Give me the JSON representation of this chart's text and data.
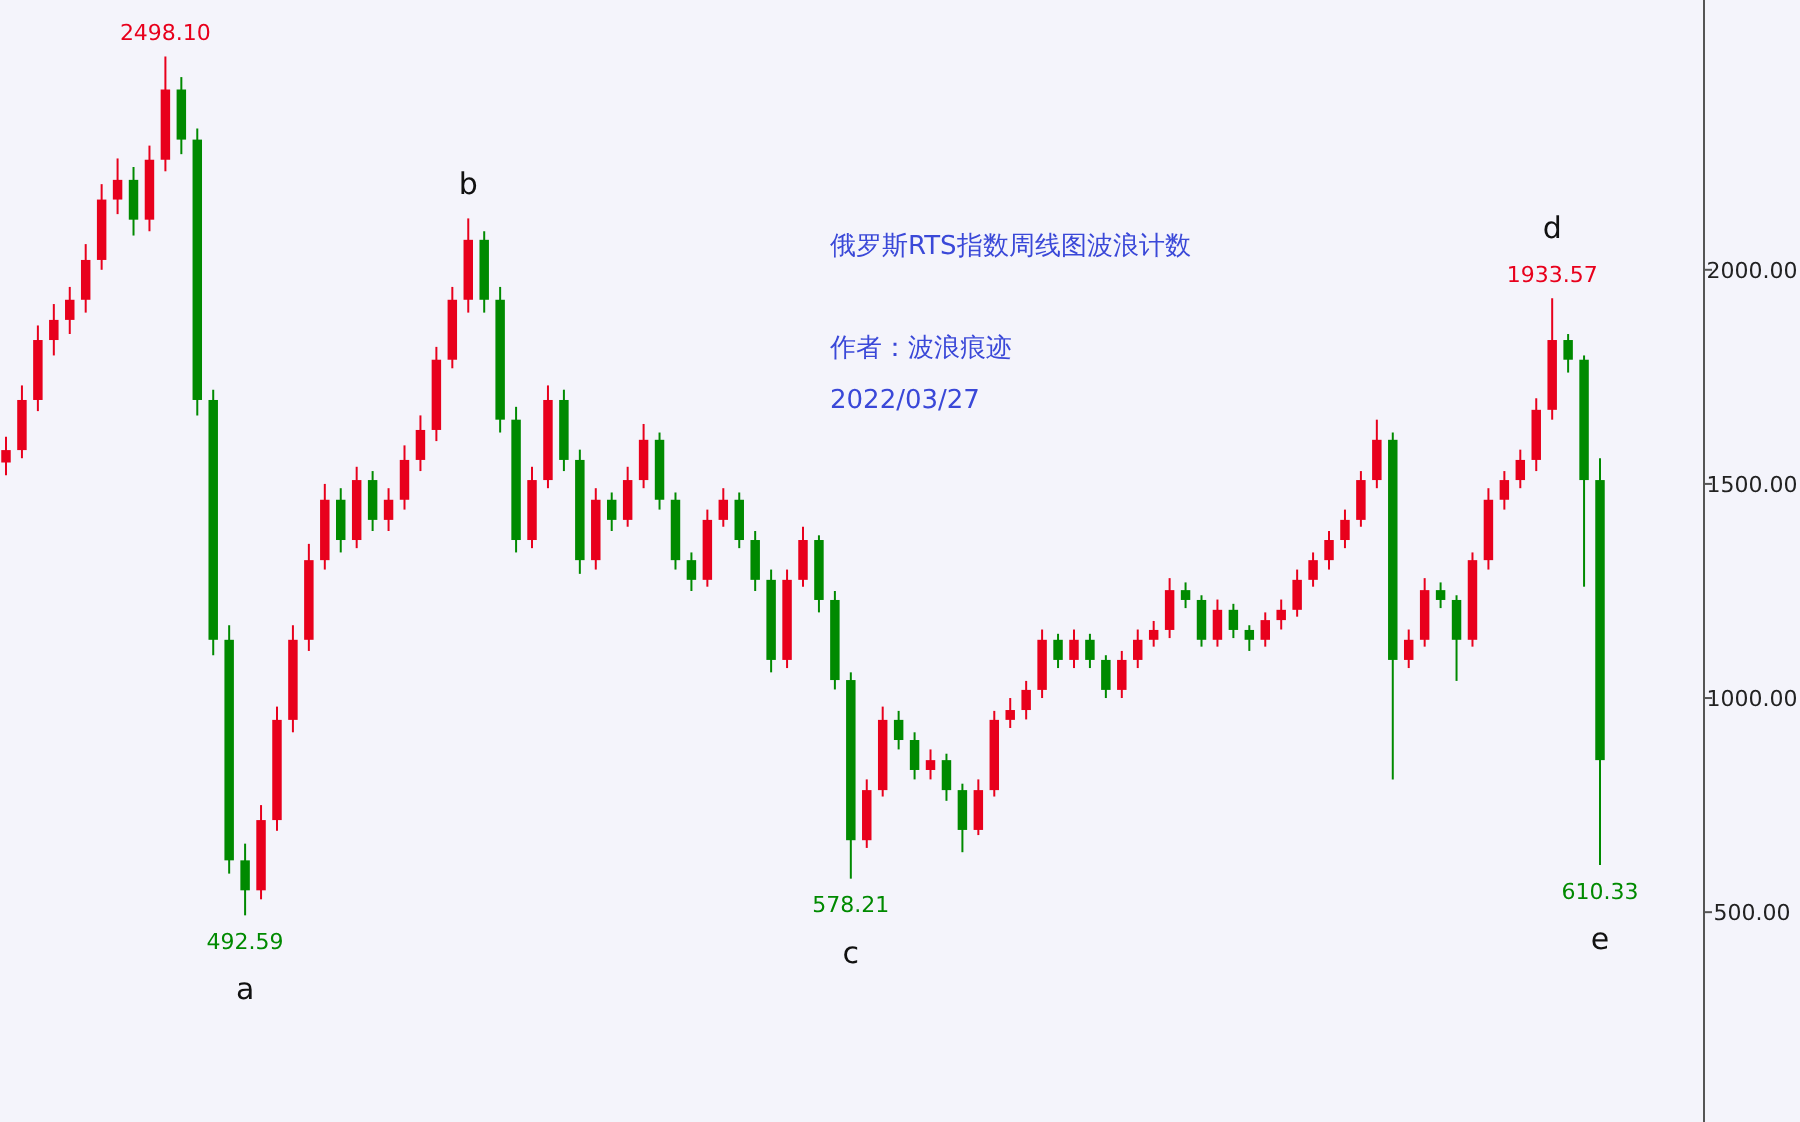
{
  "chart_data": {
    "type": "candlestick",
    "title": "俄罗斯RTS指数周线图波浪计数",
    "subtitle": "作者：波浪痕迹",
    "annotations": [
      "2022/03/27",
      {
        "text": "2498.10",
        "y": 2498.1
      },
      {
        "text": "492.59",
        "y": 492.59
      },
      {
        "text": "a",
        "y": 492.59
      },
      {
        "text": "b",
        "y": 2120
      },
      {
        "text": "578.21",
        "y": 578.21
      },
      {
        "text": "c",
        "y": 578.21
      },
      {
        "text": "1933.57",
        "y": 1933.57
      },
      {
        "text": "d",
        "y": 1933.57
      },
      {
        "text": "610.33",
        "y": 610.33
      },
      {
        "text": "e",
        "y": 610.33
      }
    ],
    "categories": [
      null,
      null,
      null,
      null,
      null,
      null,
      null,
      null,
      null,
      null,
      null,
      null,
      null,
      null,
      null,
      null,
      null,
      null,
      null,
      null,
      null,
      null,
      null,
      null,
      null,
      null,
      null,
      null,
      null,
      null,
      null,
      null,
      null,
      null,
      null,
      null,
      null,
      null,
      null,
      null,
      null,
      null,
      null,
      null,
      null,
      null,
      null,
      null,
      null,
      null,
      null,
      null,
      null,
      null,
      null,
      null,
      null,
      null,
      null,
      null,
      null,
      null,
      null,
      null,
      null,
      null,
      null,
      null,
      null,
      null,
      null,
      null,
      null,
      null,
      null,
      null,
      null,
      null,
      null,
      null,
      null,
      null,
      null,
      null,
      null,
      null,
      null,
      null,
      null,
      null,
      null,
      null,
      null,
      null,
      null,
      null,
      null,
      null,
      null,
      null,
      null
    ],
    "ohlc": [
      [
        1550,
        1610,
        1520,
        1579
      ],
      [
        1579,
        1730,
        1560,
        1696
      ],
      [
        1696,
        1870,
        1670,
        1836
      ],
      [
        1836,
        1920,
        1800,
        1883
      ],
      [
        1883,
        1960,
        1850,
        1930
      ],
      [
        1930,
        2060,
        1900,
        2023
      ],
      [
        2023,
        2200,
        2000,
        2164
      ],
      [
        2164,
        2260,
        2130,
        2210
      ],
      [
        2210,
        2240,
        2080,
        2117
      ],
      [
        2117,
        2290,
        2090,
        2257
      ],
      [
        2257,
        2498.1,
        2230,
        2421
      ],
      [
        2421,
        2450,
        2270,
        2304
      ],
      [
        2304,
        2330,
        1660,
        1696
      ],
      [
        1696,
        1720,
        1100,
        1136
      ],
      [
        1136,
        1170,
        590,
        621
      ],
      [
        621,
        660,
        492.59,
        551
      ],
      [
        551,
        750,
        530,
        715
      ],
      [
        715,
        980,
        690,
        949
      ],
      [
        949,
        1170,
        920,
        1136
      ],
      [
        1136,
        1360,
        1110,
        1322
      ],
      [
        1322,
        1500,
        1300,
        1463
      ],
      [
        1463,
        1490,
        1340,
        1369
      ],
      [
        1369,
        1540,
        1350,
        1509
      ],
      [
        1509,
        1530,
        1390,
        1416
      ],
      [
        1416,
        1490,
        1390,
        1463
      ],
      [
        1463,
        1590,
        1440,
        1556
      ],
      [
        1556,
        1660,
        1530,
        1626
      ],
      [
        1626,
        1820,
        1600,
        1790
      ],
      [
        1790,
        1960,
        1770,
        1930
      ],
      [
        1930,
        2120,
        1900,
        2070
      ],
      [
        2070,
        2090,
        1900,
        1930
      ],
      [
        1930,
        1960,
        1620,
        1650
      ],
      [
        1650,
        1680,
        1340,
        1369
      ],
      [
        1369,
        1540,
        1350,
        1509
      ],
      [
        1509,
        1730,
        1490,
        1696
      ],
      [
        1696,
        1720,
        1530,
        1556
      ],
      [
        1556,
        1580,
        1290,
        1322
      ],
      [
        1322,
        1490,
        1300,
        1463
      ],
      [
        1463,
        1480,
        1390,
        1416
      ],
      [
        1416,
        1540,
        1400,
        1509
      ],
      [
        1509,
        1640,
        1490,
        1603
      ],
      [
        1603,
        1620,
        1440,
        1463
      ],
      [
        1463,
        1480,
        1300,
        1322
      ],
      [
        1322,
        1340,
        1250,
        1276
      ],
      [
        1276,
        1440,
        1260,
        1416
      ],
      [
        1416,
        1490,
        1400,
        1463
      ],
      [
        1463,
        1480,
        1350,
        1369
      ],
      [
        1369,
        1390,
        1250,
        1276
      ],
      [
        1276,
        1300,
        1060,
        1089
      ],
      [
        1089,
        1300,
        1070,
        1276
      ],
      [
        1276,
        1400,
        1260,
        1369
      ],
      [
        1369,
        1380,
        1200,
        1229
      ],
      [
        1229,
        1250,
        1020,
        1042
      ],
      [
        1042,
        1060,
        578.21,
        668
      ],
      [
        668,
        810,
        650,
        785
      ],
      [
        785,
        980,
        770,
        949
      ],
      [
        949,
        970,
        880,
        902
      ],
      [
        902,
        920,
        810,
        832
      ],
      [
        832,
        880,
        810,
        855
      ],
      [
        855,
        870,
        760,
        785
      ],
      [
        785,
        800,
        640,
        692
      ],
      [
        692,
        810,
        680,
        785
      ],
      [
        785,
        970,
        770,
        949
      ],
      [
        949,
        1000,
        930,
        972
      ],
      [
        972,
        1040,
        950,
        1019
      ],
      [
        1019,
        1160,
        1000,
        1136
      ],
      [
        1136,
        1150,
        1070,
        1089
      ],
      [
        1089,
        1160,
        1070,
        1136
      ],
      [
        1136,
        1150,
        1070,
        1089
      ],
      [
        1089,
        1100,
        1000,
        1019
      ],
      [
        1019,
        1110,
        1000,
        1089
      ],
      [
        1089,
        1160,
        1070,
        1136
      ],
      [
        1136,
        1180,
        1120,
        1159
      ],
      [
        1159,
        1280,
        1140,
        1252
      ],
      [
        1252,
        1270,
        1210,
        1229
      ],
      [
        1229,
        1240,
        1120,
        1136
      ],
      [
        1136,
        1230,
        1120,
        1206
      ],
      [
        1206,
        1220,
        1140,
        1159
      ],
      [
        1159,
        1170,
        1110,
        1136
      ],
      [
        1136,
        1200,
        1120,
        1182
      ],
      [
        1182,
        1230,
        1160,
        1206
      ],
      [
        1206,
        1300,
        1190,
        1276
      ],
      [
        1276,
        1340,
        1260,
        1322
      ],
      [
        1322,
        1390,
        1300,
        1369
      ],
      [
        1369,
        1440,
        1350,
        1416
      ],
      [
        1416,
        1530,
        1400,
        1509
      ],
      [
        1509,
        1650,
        1490,
        1603
      ],
      [
        1603,
        1620,
        810,
        1089
      ],
      [
        1089,
        1160,
        1070,
        1136
      ],
      [
        1136,
        1280,
        1120,
        1252
      ],
      [
        1252,
        1270,
        1210,
        1229
      ],
      [
        1229,
        1240,
        1040,
        1136
      ],
      [
        1136,
        1340,
        1120,
        1322
      ],
      [
        1322,
        1490,
        1300,
        1463
      ],
      [
        1463,
        1530,
        1440,
        1509
      ],
      [
        1509,
        1580,
        1490,
        1556
      ],
      [
        1556,
        1700,
        1530,
        1673
      ],
      [
        1673,
        1933.57,
        1650,
        1836
      ],
      [
        1836,
        1850,
        1760,
        1790
      ],
      [
        1790,
        1800,
        1260,
        1509
      ],
      [
        1509,
        1560,
        610.33,
        855
      ]
    ],
    "ylim": [
      10,
      2630
    ],
    "yticks": [
      {
        "value": 500,
        "label": "500.00"
      },
      {
        "value": 1000,
        "label": "1000.00"
      },
      {
        "value": 1500,
        "label": "1500.00"
      },
      {
        "value": 2000,
        "label": "2000.00"
      }
    ]
  }
}
